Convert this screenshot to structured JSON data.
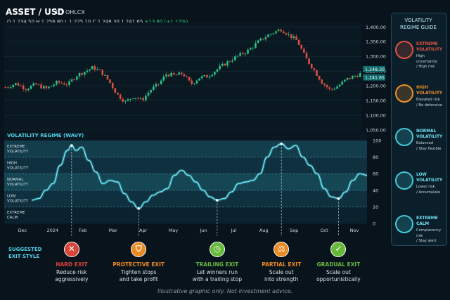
{
  "header": {
    "title": "ASSET / USD",
    "timeframe": "1D",
    "chart_type": "OHLCX",
    "ohlc": {
      "o": "O 1,234.50",
      "h": "H 1,256.80",
      "l": "L 1,225.10",
      "c": "C 1,248.30",
      "last": "1,241.65",
      "change": "+13.80 (+1.12%)"
    }
  },
  "chart_data": [
    {
      "type": "candlestick",
      "y_ticks": [
        "1,400.00",
        "1,350.00",
        "1,300.00",
        "1,250.00",
        "1,200.00",
        "1,150.00",
        "1,100.00",
        "1,050.00"
      ],
      "ylim": [
        1050,
        1415
      ],
      "price_tags": [
        "1,248.30",
        "1,241.65"
      ],
      "colors": {
        "up": "#2bc48a",
        "down": "#e0513f"
      },
      "trend": [
        [
          0,
          1195
        ],
        [
          8,
          1208
        ],
        [
          15,
          1190
        ],
        [
          22,
          1205
        ],
        [
          30,
          1190
        ],
        [
          38,
          1212
        ],
        [
          46,
          1205
        ],
        [
          52,
          1235
        ],
        [
          58,
          1248
        ],
        [
          64,
          1262
        ],
        [
          70,
          1248
        ],
        [
          76,
          1215
        ],
        [
          82,
          1170
        ],
        [
          88,
          1145
        ],
        [
          94,
          1165
        ],
        [
          100,
          1150
        ],
        [
          106,
          1185
        ],
        [
          112,
          1205
        ],
        [
          118,
          1240
        ],
        [
          124,
          1235
        ],
        [
          130,
          1242
        ],
        [
          136,
          1205
        ],
        [
          142,
          1228
        ],
        [
          148,
          1232
        ],
        [
          154,
          1252
        ],
        [
          160,
          1272
        ],
        [
          166,
          1290
        ],
        [
          172,
          1305
        ],
        [
          178,
          1320
        ],
        [
          184,
          1345
        ],
        [
          190,
          1365
        ],
        [
          196,
          1380
        ],
        [
          202,
          1392
        ],
        [
          208,
          1372
        ],
        [
          214,
          1352
        ],
        [
          220,
          1295
        ],
        [
          226,
          1255
        ],
        [
          232,
          1212
        ],
        [
          238,
          1185
        ],
        [
          244,
          1200
        ],
        [
          250,
          1222
        ],
        [
          256,
          1233
        ],
        [
          260,
          1240
        ]
      ]
    },
    {
      "type": "line",
      "title": "VOLATILITY REGIME (WAVY)",
      "ylim": [
        0,
        100
      ],
      "y_ticks": [
        0,
        20,
        40,
        60,
        80,
        100
      ],
      "x_labels": [
        "Dec",
        "2024",
        "Feb",
        "Mar",
        "Apr",
        "May",
        "Jun",
        "Jul",
        "Aug",
        "Sep",
        "Oct",
        "Nov"
      ],
      "zones": [
        "EXTREME VOLATILITY",
        "HIGH VOLATILITY",
        "NORMAL VOLATILITY",
        "LOW VOLATILITY",
        "EXTREME CALM"
      ],
      "points": [
        [
          0,
          28
        ],
        [
          5,
          30
        ],
        [
          10,
          40
        ],
        [
          15,
          48
        ],
        [
          20,
          70
        ],
        [
          25,
          88
        ],
        [
          28,
          94
        ],
        [
          31,
          88
        ],
        [
          35,
          92
        ],
        [
          40,
          76
        ],
        [
          45,
          62
        ],
        [
          50,
          48
        ],
        [
          55,
          52
        ],
        [
          60,
          50
        ],
        [
          65,
          36
        ],
        [
          70,
          26
        ],
        [
          75,
          18
        ],
        [
          80,
          26
        ],
        [
          85,
          34
        ],
        [
          90,
          38
        ],
        [
          95,
          42
        ],
        [
          100,
          58
        ],
        [
          105,
          64
        ],
        [
          110,
          58
        ],
        [
          115,
          50
        ],
        [
          120,
          40
        ],
        [
          125,
          32
        ],
        [
          130,
          28
        ],
        [
          135,
          30
        ],
        [
          140,
          38
        ],
        [
          145,
          48
        ],
        [
          150,
          50
        ],
        [
          155,
          52
        ],
        [
          160,
          60
        ],
        [
          165,
          80
        ],
        [
          170,
          92
        ],
        [
          175,
          96
        ],
        [
          180,
          90
        ],
        [
          185,
          94
        ],
        [
          190,
          80
        ],
        [
          195,
          70
        ],
        [
          200,
          60
        ],
        [
          205,
          42
        ],
        [
          210,
          32
        ],
        [
          215,
          30
        ],
        [
          220,
          38
        ],
        [
          225,
          52
        ],
        [
          230,
          60
        ],
        [
          235,
          58
        ]
      ],
      "markers": [
        28,
        75,
        130,
        175,
        215
      ]
    }
  ],
  "guide": {
    "title_1": "VOLATILITY",
    "title_2": "REGIME GUIDE",
    "items": [
      {
        "name_1": "EXTREME",
        "name_2": "VOLATILITY",
        "desc_1": "High uncertainty",
        "desc_2": "/ High risk",
        "color": "#e0513f"
      },
      {
        "name_1": "HIGH",
        "name_2": "VOLATILITY",
        "desc_1": "Elevated risk",
        "desc_2": "/ Be defensive",
        "color": "#f0902a"
      },
      {
        "name_1": "NORMAL",
        "name_2": "VOLATILITY",
        "desc_1": "Balanced",
        "desc_2": "/ Stay flexible",
        "color": "#43c8d8"
      },
      {
        "name_1": "LOW",
        "name_2": "VOLATILITY",
        "desc_1": "Lower risk",
        "desc_2": "/ Accumulate",
        "color": "#43c8d8"
      },
      {
        "name_1": "EXTREME",
        "name_2": "CALM",
        "desc_1": "Complacency risk",
        "desc_2": "/ Stay alert",
        "color": "#43c8d8"
      }
    ]
  },
  "exits": {
    "title_1": "SUGGESTED",
    "title_2": "EXIT STYLE",
    "items": [
      {
        "name": "HARD EXIT",
        "desc_1": "Reduce risk",
        "desc_2": "aggressively",
        "color": "#d8453a",
        "icon": "x-icon",
        "glyph": "✕"
      },
      {
        "name": "PROTECTIVE EXIT",
        "desc_1": "Tighten stops",
        "desc_2": "and take profit",
        "color": "#e98a24",
        "icon": "shield-icon",
        "glyph": "⛉"
      },
      {
        "name": "TRAILING EXIT",
        "desc_1": "Let winners run",
        "desc_2": "with a trailing stop",
        "color": "#67b93c",
        "icon": "clock-icon",
        "glyph": "◷"
      },
      {
        "name": "PARTIAL EXIT",
        "desc_1": "Scale out",
        "desc_2": "into strength",
        "color": "#e98a24",
        "icon": "scale-icon",
        "glyph": "⚖"
      },
      {
        "name": "GRADUAL EXIT",
        "desc_1": "Scale out",
        "desc_2": "opportunistically",
        "color": "#67b93c",
        "icon": "check-icon",
        "glyph": "✓"
      }
    ]
  },
  "disclaimer": "Illustrative graphic only. Not investment advice."
}
